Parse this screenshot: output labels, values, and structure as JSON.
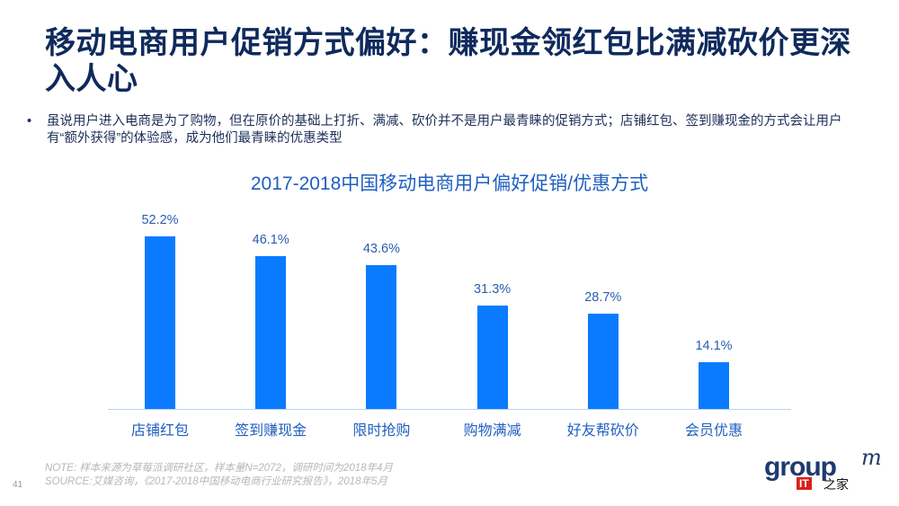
{
  "page": {
    "title": "移动电商用户促销方式偏好：赚现金领红包比满减砍价更深入人心",
    "bullet_symbol": "•",
    "bullet_text": "虽说用户进入电商是为了购物，但在原价的基础上打折、满减、砍价并不是用户最青睐的促销方式；店铺红包、签到赚现金的方式会让用户有“额外获得”的体验感，成为他们最青睐的优惠类型",
    "page_number": "41",
    "note": "NOTE: 样本来源为草莓派调研社区，样本量N=2072，调研时间为2018年4月",
    "source": "SOURCE:艾媒咨询，《2017-2018中国移动电商行业研究报告》，2018年5月",
    "logo": {
      "brand": "group",
      "brand_m": "m",
      "partner_badge": "IT",
      "partner_text": "之家"
    },
    "colors": {
      "bar": "#0a7bff",
      "title": "#0f2a5c",
      "chart_text": "#1f5fbf"
    }
  },
  "chart_data": {
    "type": "bar",
    "title": "2017-2018中国移动电商用户偏好促销/优惠方式",
    "categories": [
      "店铺红包",
      "签到赚现金",
      "限时抢购",
      "购物满减",
      "好友帮砍价",
      "会员优惠"
    ],
    "values": [
      52.2,
      46.1,
      43.6,
      31.3,
      28.7,
      14.1
    ],
    "value_labels": [
      "52.2%",
      "46.1%",
      "43.6%",
      "31.3%",
      "28.7%",
      "14.1%"
    ],
    "xlabel": "",
    "ylabel": "",
    "unit": "%",
    "grid": false,
    "legend": null
  }
}
